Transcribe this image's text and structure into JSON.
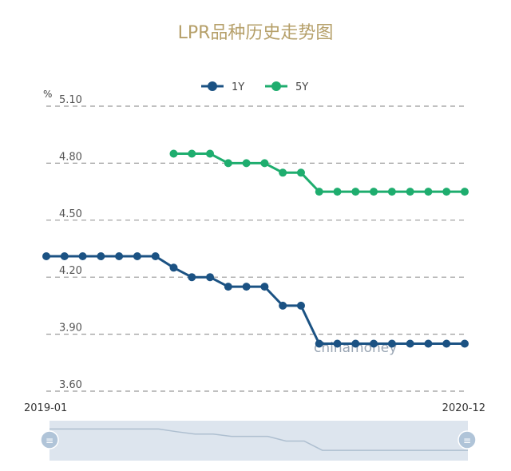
{
  "chart_data": {
    "type": "line",
    "title": "LPR品种历史走势图",
    "unit": "%",
    "ylim": [
      3.6,
      5.1
    ],
    "y_ticks": [
      "5.10",
      "4.80",
      "4.50",
      "4.20",
      "3.90",
      "3.60"
    ],
    "x_start_label": "2019-01",
    "x_end_label": "2020-12",
    "points_count": 24,
    "grid": "dashed horizontal",
    "legend_position": "top-center",
    "watermark": "chinamoney",
    "series": [
      {
        "name": "1Y",
        "color": "#1b5283",
        "values": [
          4.31,
          4.31,
          4.31,
          4.31,
          4.31,
          4.31,
          4.31,
          4.25,
          4.2,
          4.2,
          4.15,
          4.15,
          4.15,
          4.05,
          4.05,
          3.85,
          3.85,
          3.85,
          3.85,
          3.85,
          3.85,
          3.85,
          3.85,
          3.85
        ]
      },
      {
        "name": "5Y",
        "color": "#1ead6e",
        "values": [
          null,
          null,
          null,
          null,
          null,
          null,
          null,
          4.85,
          4.85,
          4.85,
          4.8,
          4.8,
          4.8,
          4.75,
          4.75,
          4.65,
          4.65,
          4.65,
          4.65,
          4.65,
          4.65,
          4.65,
          4.65,
          4.65
        ]
      }
    ]
  }
}
